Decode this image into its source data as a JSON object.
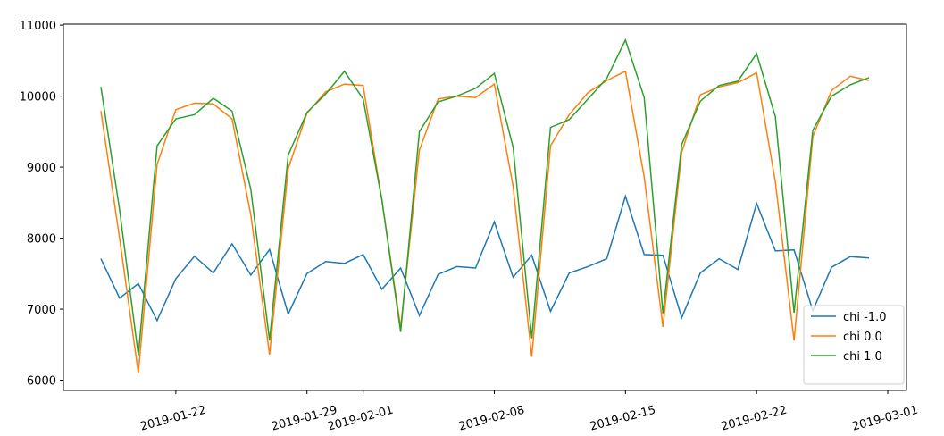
{
  "chart_data": {
    "type": "line",
    "x": [
      "2019-01-18",
      "2019-01-19",
      "2019-01-20",
      "2019-01-21",
      "2019-01-22",
      "2019-01-23",
      "2019-01-24",
      "2019-01-25",
      "2019-01-26",
      "2019-01-27",
      "2019-01-28",
      "2019-01-29",
      "2019-01-30",
      "2019-01-31",
      "2019-02-01",
      "2019-02-02",
      "2019-02-03",
      "2019-02-04",
      "2019-02-05",
      "2019-02-06",
      "2019-02-07",
      "2019-02-08",
      "2019-02-09",
      "2019-02-10",
      "2019-02-11",
      "2019-02-12",
      "2019-02-13",
      "2019-02-14",
      "2019-02-15",
      "2019-02-16",
      "2019-02-17",
      "2019-02-18",
      "2019-02-19",
      "2019-02-20",
      "2019-02-21",
      "2019-02-22",
      "2019-02-23",
      "2019-02-24",
      "2019-02-25",
      "2019-02-26",
      "2019-02-27",
      "2019-02-28"
    ],
    "series": [
      {
        "name": "chi -1.0",
        "color": "#1f77b4",
        "values": [
          7710,
          7155,
          7360,
          6840,
          7430,
          7745,
          7510,
          7920,
          7480,
          7840,
          6930,
          7500,
          7670,
          7645,
          7770,
          7280,
          7580,
          6910,
          7490,
          7600,
          7580,
          8230,
          7450,
          7760,
          6970,
          7510,
          7600,
          7710,
          8590,
          7770,
          7760,
          6880,
          7510,
          7710,
          7560,
          8490,
          7820,
          7835,
          6980,
          7590,
          7740,
          7720
        ]
      },
      {
        "name": "chi 0.0",
        "color": "#ff7f0e",
        "values": [
          9790,
          8000,
          6100,
          9040,
          9810,
          9900,
          9890,
          9680,
          8330,
          6360,
          8980,
          9760,
          10060,
          10170,
          10150,
          8540,
          6740,
          9240,
          9960,
          10000,
          9980,
          10170,
          8730,
          6330,
          9300,
          9740,
          10050,
          10220,
          10350,
          8860,
          6750,
          9210,
          10020,
          10130,
          10190,
          10330,
          8790,
          6560,
          9430,
          10080,
          10280,
          10220
        ]
      },
      {
        "name": "chi 1.0",
        "color": "#2ca02c",
        "values": [
          10130,
          8400,
          6350,
          9300,
          9680,
          9740,
          9970,
          9790,
          8690,
          6560,
          9170,
          9770,
          10030,
          10350,
          9960,
          8540,
          6680,
          9500,
          9920,
          10000,
          10110,
          10320,
          9280,
          6590,
          9560,
          9670,
          9960,
          10250,
          10790,
          9980,
          6940,
          9320,
          9930,
          10150,
          10210,
          10600,
          9710,
          6950,
          9520,
          10000,
          10160,
          10260
        ]
      }
    ],
    "xlim": [
      "2019-01-16",
      "2019-03-02"
    ],
    "xticks": [
      "2019-01-22",
      "2019-01-29",
      "2019-02-01",
      "2019-02-08",
      "2019-02-15",
      "2019-02-22",
      "2019-03-01"
    ],
    "ylim": [
      5856,
      11014
    ],
    "yticks": [
      6000,
      7000,
      8000,
      9000,
      10000,
      11000
    ],
    "legend": "lower right"
  }
}
